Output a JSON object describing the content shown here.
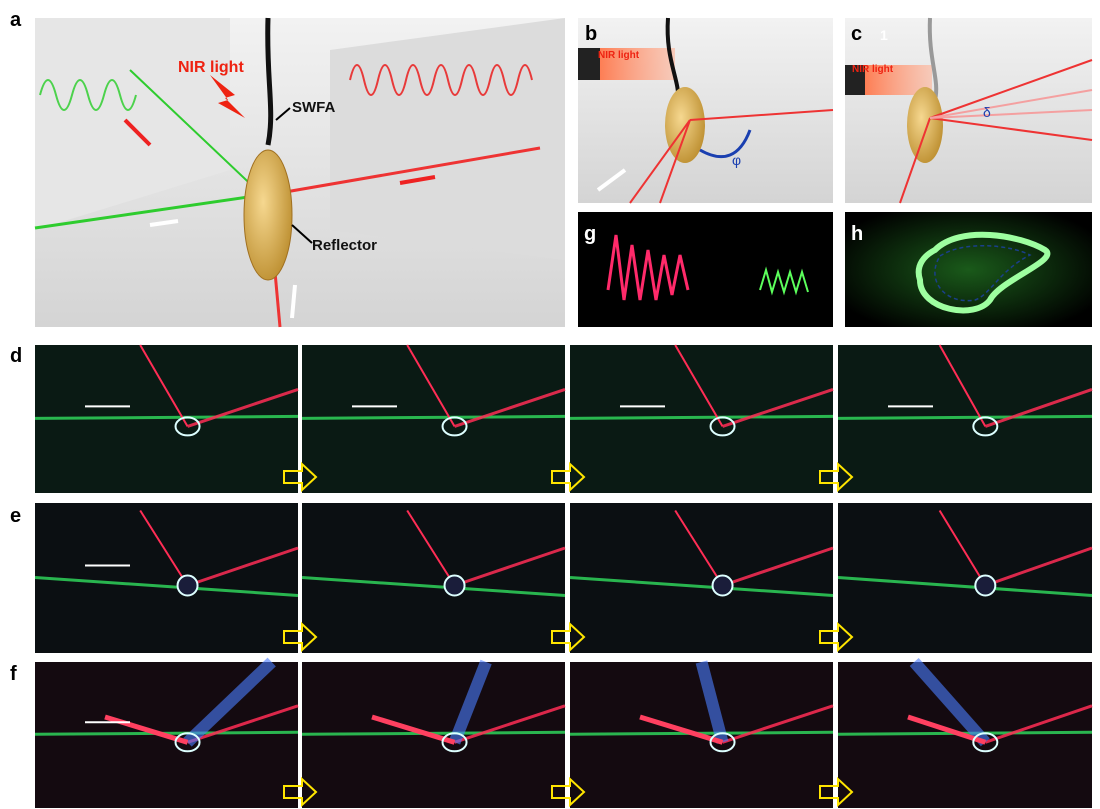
{
  "panels": [
    {
      "label": "a",
      "annotations": [
        "NIR light",
        "SWFA",
        "Reflector"
      ]
    },
    {
      "label": "b",
      "annotations": [
        "NIR light",
        "φ"
      ]
    },
    {
      "label": "c",
      "annotations": [
        "1",
        "NIR light",
        "δ"
      ]
    },
    {
      "label": "d"
    },
    {
      "label": "e"
    },
    {
      "label": "f"
    },
    {
      "label": "g"
    },
    {
      "label": "h"
    }
  ]
}
